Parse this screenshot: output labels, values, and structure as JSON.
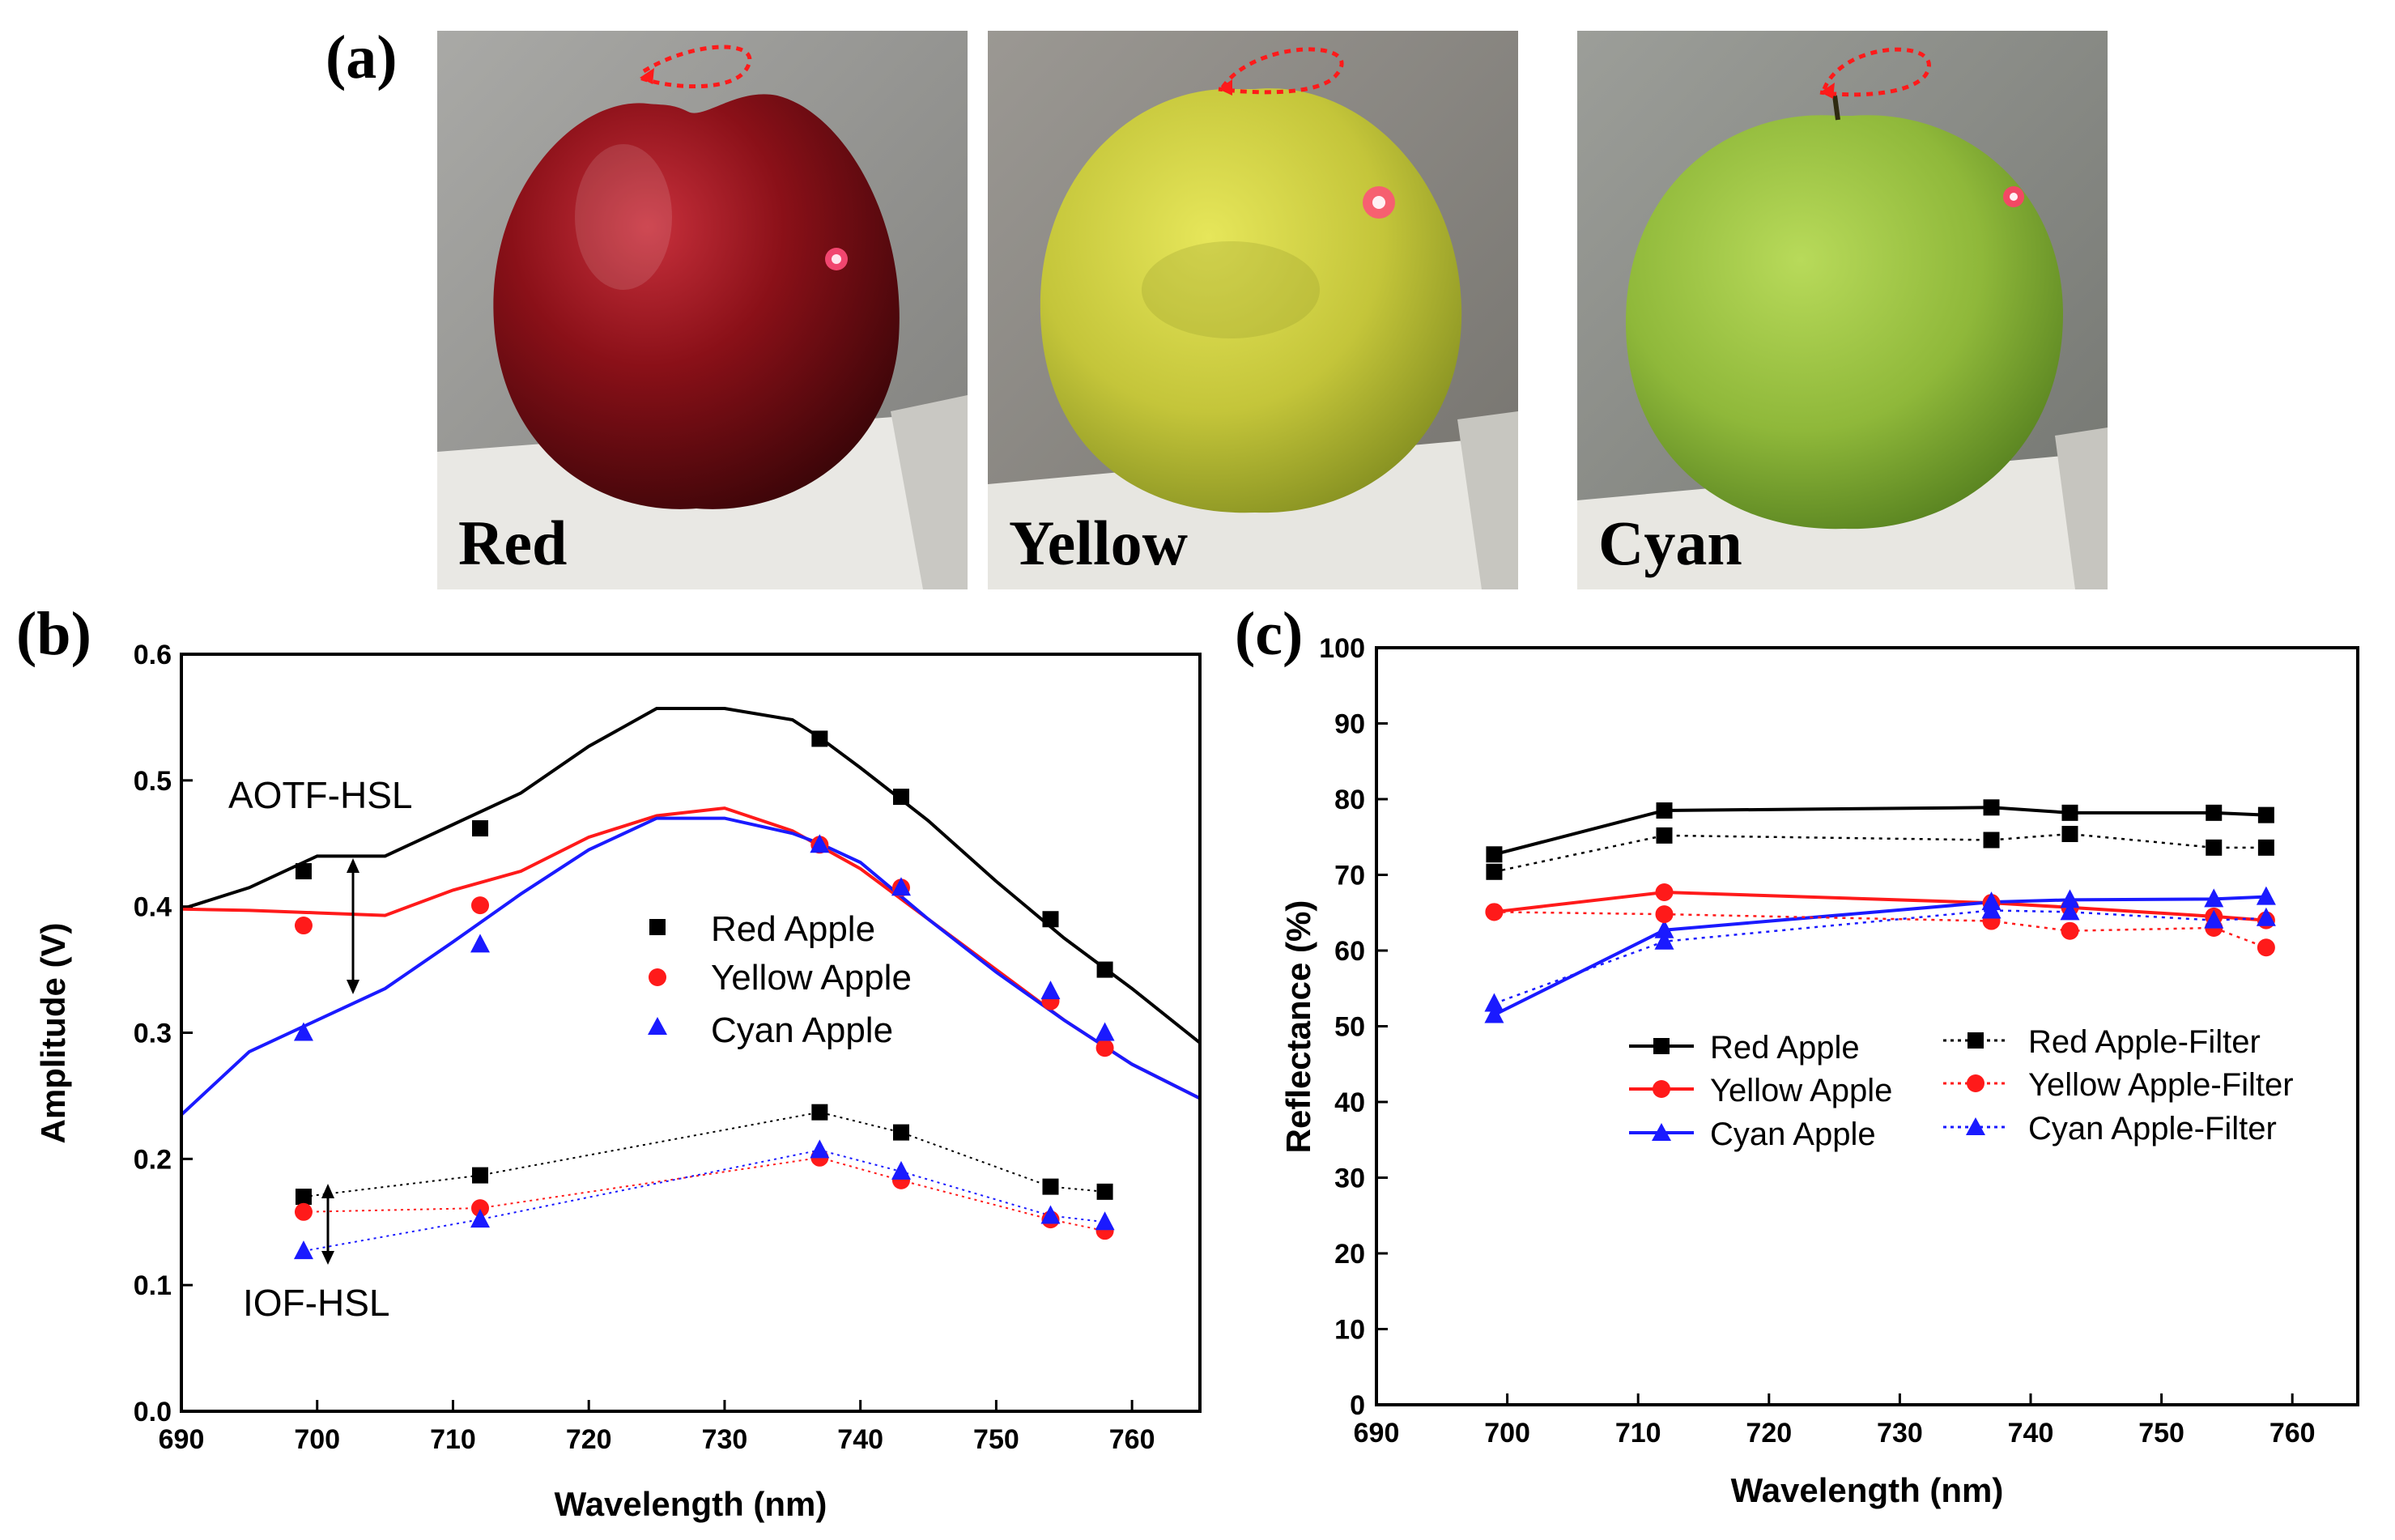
{
  "figure": {
    "panel_labels": {
      "a": "(a)",
      "b": "(b)",
      "c": "(c)"
    },
    "photos": [
      {
        "label": "Red",
        "apple_color": "#7a0c14",
        "background": "#9a9a96"
      },
      {
        "label": "Yellow",
        "apple_color": "#c9cc3a",
        "background": "#8e8b86"
      },
      {
        "label": "Cyan",
        "apple_color": "#94be3a",
        "background": "#8f918c"
      }
    ],
    "colors": {
      "red_apple": "#000000",
      "yellow_apple": "#ff1a1a",
      "cyan_apple": "#1a1aff"
    }
  },
  "chart_data": [
    {
      "id": "b",
      "type": "line",
      "xlabel": "Wavelength (nm)",
      "ylabel": "Amplitude (V)",
      "xlim": [
        690,
        765
      ],
      "ylim": [
        0.0,
        0.6
      ],
      "xticks": [
        690,
        700,
        710,
        720,
        730,
        740,
        750,
        760
      ],
      "yticks": [
        0.0,
        0.1,
        0.2,
        0.3,
        0.4,
        0.5,
        0.6
      ],
      "ytick_labels": [
        "0.0",
        "0.1",
        "0.2",
        "0.3",
        "0.4",
        "0.5",
        "0.6"
      ],
      "annotations": [
        "AOTF-HSL",
        "IOF-HSL"
      ],
      "legend": [
        "Red Apple",
        "Yellow Apple",
        "Cyan Apple"
      ],
      "aotf_curves": [
        {
          "name": "Red Apple",
          "color": "#000000",
          "x": [
            690,
            695,
            700,
            705,
            710,
            715,
            720,
            725,
            730,
            735,
            737,
            740,
            745,
            750,
            755,
            760,
            765
          ],
          "y": [
            0.398,
            0.415,
            0.44,
            0.44,
            0.465,
            0.49,
            0.527,
            0.557,
            0.557,
            0.548,
            0.534,
            0.51,
            0.468,
            0.42,
            0.375,
            0.335,
            0.292
          ]
        },
        {
          "name": "Yellow Apple",
          "color": "#ff1a1a",
          "x": [
            690,
            695,
            700,
            705,
            710,
            715,
            720,
            725,
            730,
            735,
            737,
            740,
            745,
            750,
            755,
            760,
            765
          ],
          "y": [
            0.398,
            0.397,
            0.395,
            0.393,
            0.413,
            0.428,
            0.455,
            0.472,
            0.478,
            0.46,
            0.448,
            0.43,
            0.39,
            0.35,
            0.31,
            0.275,
            0.248
          ]
        },
        {
          "name": "Cyan Apple",
          "color": "#1a1aff",
          "x": [
            690,
            695,
            700,
            705,
            710,
            715,
            720,
            725,
            730,
            735,
            737,
            740,
            745,
            750,
            755,
            760,
            765
          ],
          "y": [
            0.235,
            0.285,
            0.31,
            0.335,
            0.372,
            0.41,
            0.445,
            0.47,
            0.47,
            0.458,
            0.45,
            0.435,
            0.39,
            0.348,
            0.31,
            0.275,
            0.248
          ]
        }
      ],
      "aotf_points": [
        {
          "name": "Red Apple",
          "x": [
            699,
            712,
            737,
            743,
            754,
            758
          ],
          "y": [
            0.428,
            0.462,
            0.533,
            0.487,
            0.39,
            0.35
          ]
        },
        {
          "name": "Yellow Apple",
          "x": [
            699,
            712,
            737,
            743,
            754,
            758
          ],
          "y": [
            0.385,
            0.401,
            0.449,
            0.415,
            0.325,
            0.288
          ]
        },
        {
          "name": "Cyan Apple",
          "x": [
            699,
            712,
            737,
            743,
            754,
            758
          ],
          "y": [
            0.3,
            0.37,
            0.449,
            0.415,
            0.333,
            0.3
          ]
        }
      ],
      "iof_series": [
        {
          "name": "Red Apple",
          "x": [
            699,
            712,
            737,
            743,
            754,
            758
          ],
          "y": [
            0.17,
            0.187,
            0.237,
            0.221,
            0.178,
            0.174
          ]
        },
        {
          "name": "Yellow Apple",
          "x": [
            699,
            712,
            737,
            743,
            754,
            758
          ],
          "y": [
            0.158,
            0.161,
            0.201,
            0.183,
            0.152,
            0.143
          ]
        },
        {
          "name": "Cyan Apple",
          "x": [
            699,
            712,
            737,
            743,
            754,
            758
          ],
          "y": [
            0.127,
            0.152,
            0.207,
            0.19,
            0.155,
            0.15
          ]
        }
      ]
    },
    {
      "id": "c",
      "type": "line",
      "xlabel": "Wavelength (nm)",
      "ylabel": "Reflectance (%)",
      "xlim": [
        690,
        765
      ],
      "ylim": [
        0,
        100
      ],
      "xticks": [
        690,
        700,
        710,
        720,
        730,
        740,
        750,
        760
      ],
      "yticks": [
        0,
        10,
        20,
        30,
        40,
        50,
        60,
        70,
        80,
        90,
        100
      ],
      "legend": [
        "Red Apple",
        "Yellow Apple",
        "Cyan Apple",
        "Red Apple-Filter",
        "Yellow Apple-Filter",
        "Cyan Apple-Filter"
      ],
      "series": [
        {
          "name": "Red Apple",
          "color": "#000000",
          "style": "solid",
          "marker": "square",
          "x": [
            699,
            712,
            737,
            743,
            754,
            758
          ],
          "y": [
            72.7,
            78.5,
            78.9,
            78.2,
            78.2,
            77.9
          ]
        },
        {
          "name": "Yellow Apple",
          "color": "#ff1a1a",
          "style": "solid",
          "marker": "circle",
          "x": [
            699,
            712,
            737,
            743,
            754,
            758
          ],
          "y": [
            65.1,
            67.7,
            66.3,
            65.7,
            64.5,
            64.0
          ]
        },
        {
          "name": "Cyan Apple",
          "color": "#1a1aff",
          "style": "solid",
          "marker": "triangle",
          "x": [
            699,
            712,
            737,
            743,
            754,
            758
          ],
          "y": [
            51.5,
            62.7,
            66.4,
            66.7,
            66.8,
            67.1
          ]
        },
        {
          "name": "Red Apple-Filter",
          "color": "#000000",
          "style": "dotted",
          "marker": "square",
          "x": [
            699,
            712,
            737,
            743,
            754,
            758
          ],
          "y": [
            70.4,
            75.2,
            74.6,
            75.4,
            73.6,
            73.6
          ]
        },
        {
          "name": "Yellow Apple-Filter",
          "color": "#ff1a1a",
          "style": "dotted",
          "marker": "circle",
          "x": [
            699,
            712,
            737,
            743,
            754,
            758
          ],
          "y": [
            65.1,
            64.8,
            63.9,
            62.6,
            63.0,
            60.4
          ]
        },
        {
          "name": "Cyan Apple-Filter",
          "color": "#1a1aff",
          "style": "dotted",
          "marker": "triangle",
          "x": [
            699,
            712,
            737,
            743,
            754,
            758
          ],
          "y": [
            53.0,
            61.2,
            65.3,
            65.1,
            64.0,
            64.3
          ]
        }
      ]
    }
  ]
}
